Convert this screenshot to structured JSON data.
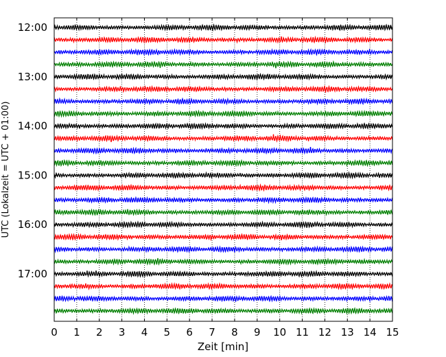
{
  "chart_data": {
    "type": "line",
    "title": "",
    "xlabel": "Zeit  [min]",
    "ylabel": "UTC (Lokalzeit = UTC + 01:00)",
    "xlim": [
      0,
      15
    ],
    "x_ticks": [
      0,
      1,
      2,
      3,
      4,
      5,
      6,
      7,
      8,
      9,
      10,
      11,
      12,
      13,
      14,
      15
    ],
    "x_tick_labels": [
      "0",
      "1",
      "2",
      "3",
      "4",
      "5",
      "6",
      "7",
      "8",
      "9",
      "10",
      "11",
      "12",
      "13",
      "14",
      "15"
    ],
    "y_tick_labels": [
      "12:00",
      "13:00",
      "14:00",
      "15:00",
      "16:00",
      "17:00"
    ],
    "row_interval_minutes": 15,
    "trace_start_times": [
      "12:00",
      "12:15",
      "12:30",
      "12:45",
      "13:00",
      "13:15",
      "13:30",
      "13:45",
      "14:00",
      "14:15",
      "14:30",
      "14:45",
      "15:00",
      "15:15",
      "15:30",
      "15:45",
      "16:00",
      "16:15",
      "16:30",
      "16:45",
      "17:00",
      "17:15",
      "17:30",
      "17:45"
    ],
    "trace_colors": [
      "#000000",
      "#ff0000",
      "#0000ff",
      "#007f00"
    ],
    "grid": "vertical dotted at each minute",
    "legend": "none"
  }
}
